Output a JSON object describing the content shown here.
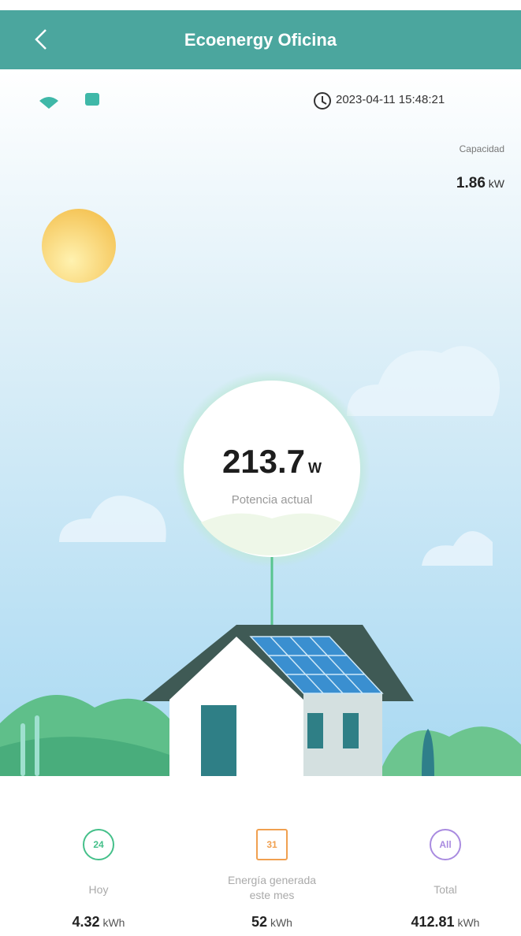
{
  "header": {
    "title": "Ecoenergy Oficina"
  },
  "status": {
    "timestamp": "2023-04-11 15:48:21"
  },
  "capacity": {
    "label": "Capacidad",
    "value": "1.86",
    "unit": "kW"
  },
  "power": {
    "value": "213.7",
    "unit": "W",
    "label": "Potencia actual"
  },
  "stats": [
    {
      "icon": "24",
      "label": "Hoy",
      "value": "4.32",
      "unit": "kWh"
    },
    {
      "icon": "31",
      "label": "Energía generada este mes",
      "value": "52",
      "unit": "kWh"
    },
    {
      "icon": "All",
      "label": "Total",
      "value": "412.81",
      "unit": "kWh"
    }
  ]
}
